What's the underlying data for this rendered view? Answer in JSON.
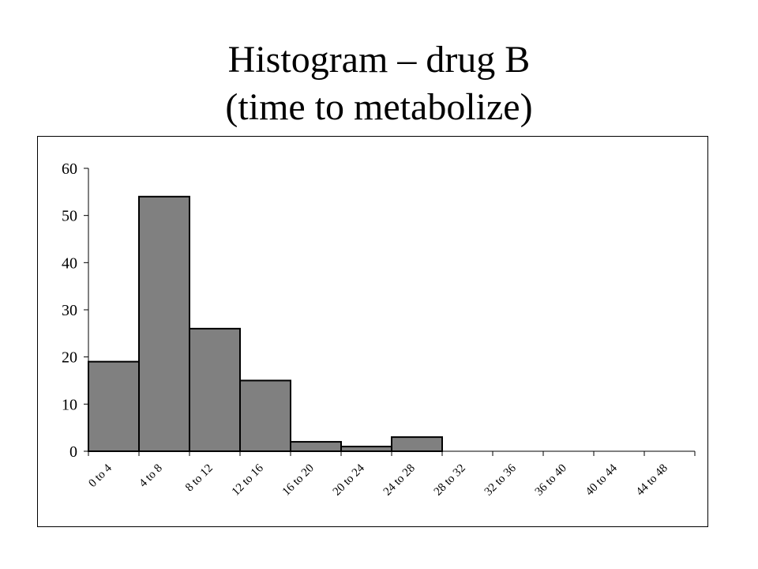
{
  "title": {
    "line1": "Histogram – drug B",
    "line2": "(time to metabolize)"
  },
  "chart_data": {
    "type": "bar",
    "categories": [
      "0 to 4",
      "4 to 8",
      "8 to 12",
      "12 to 16",
      "16 to 20",
      "20 to 24",
      "24 to 28",
      "28 to 32",
      "32 to 36",
      "36 to 40",
      "40 to 44",
      "44 to 48"
    ],
    "values": [
      19,
      54,
      26,
      15,
      2,
      1,
      3,
      0,
      0,
      0,
      0,
      0
    ],
    "ylim": [
      0,
      60
    ],
    "yticks": [
      0,
      10,
      20,
      30,
      40,
      50,
      60
    ],
    "xlabel": "",
    "ylabel": "",
    "grid": false,
    "legend": "none",
    "colors": {
      "bar_fill": "#808080",
      "bar_stroke": "#000000",
      "axis": "#000000",
      "text": "#000000"
    }
  }
}
